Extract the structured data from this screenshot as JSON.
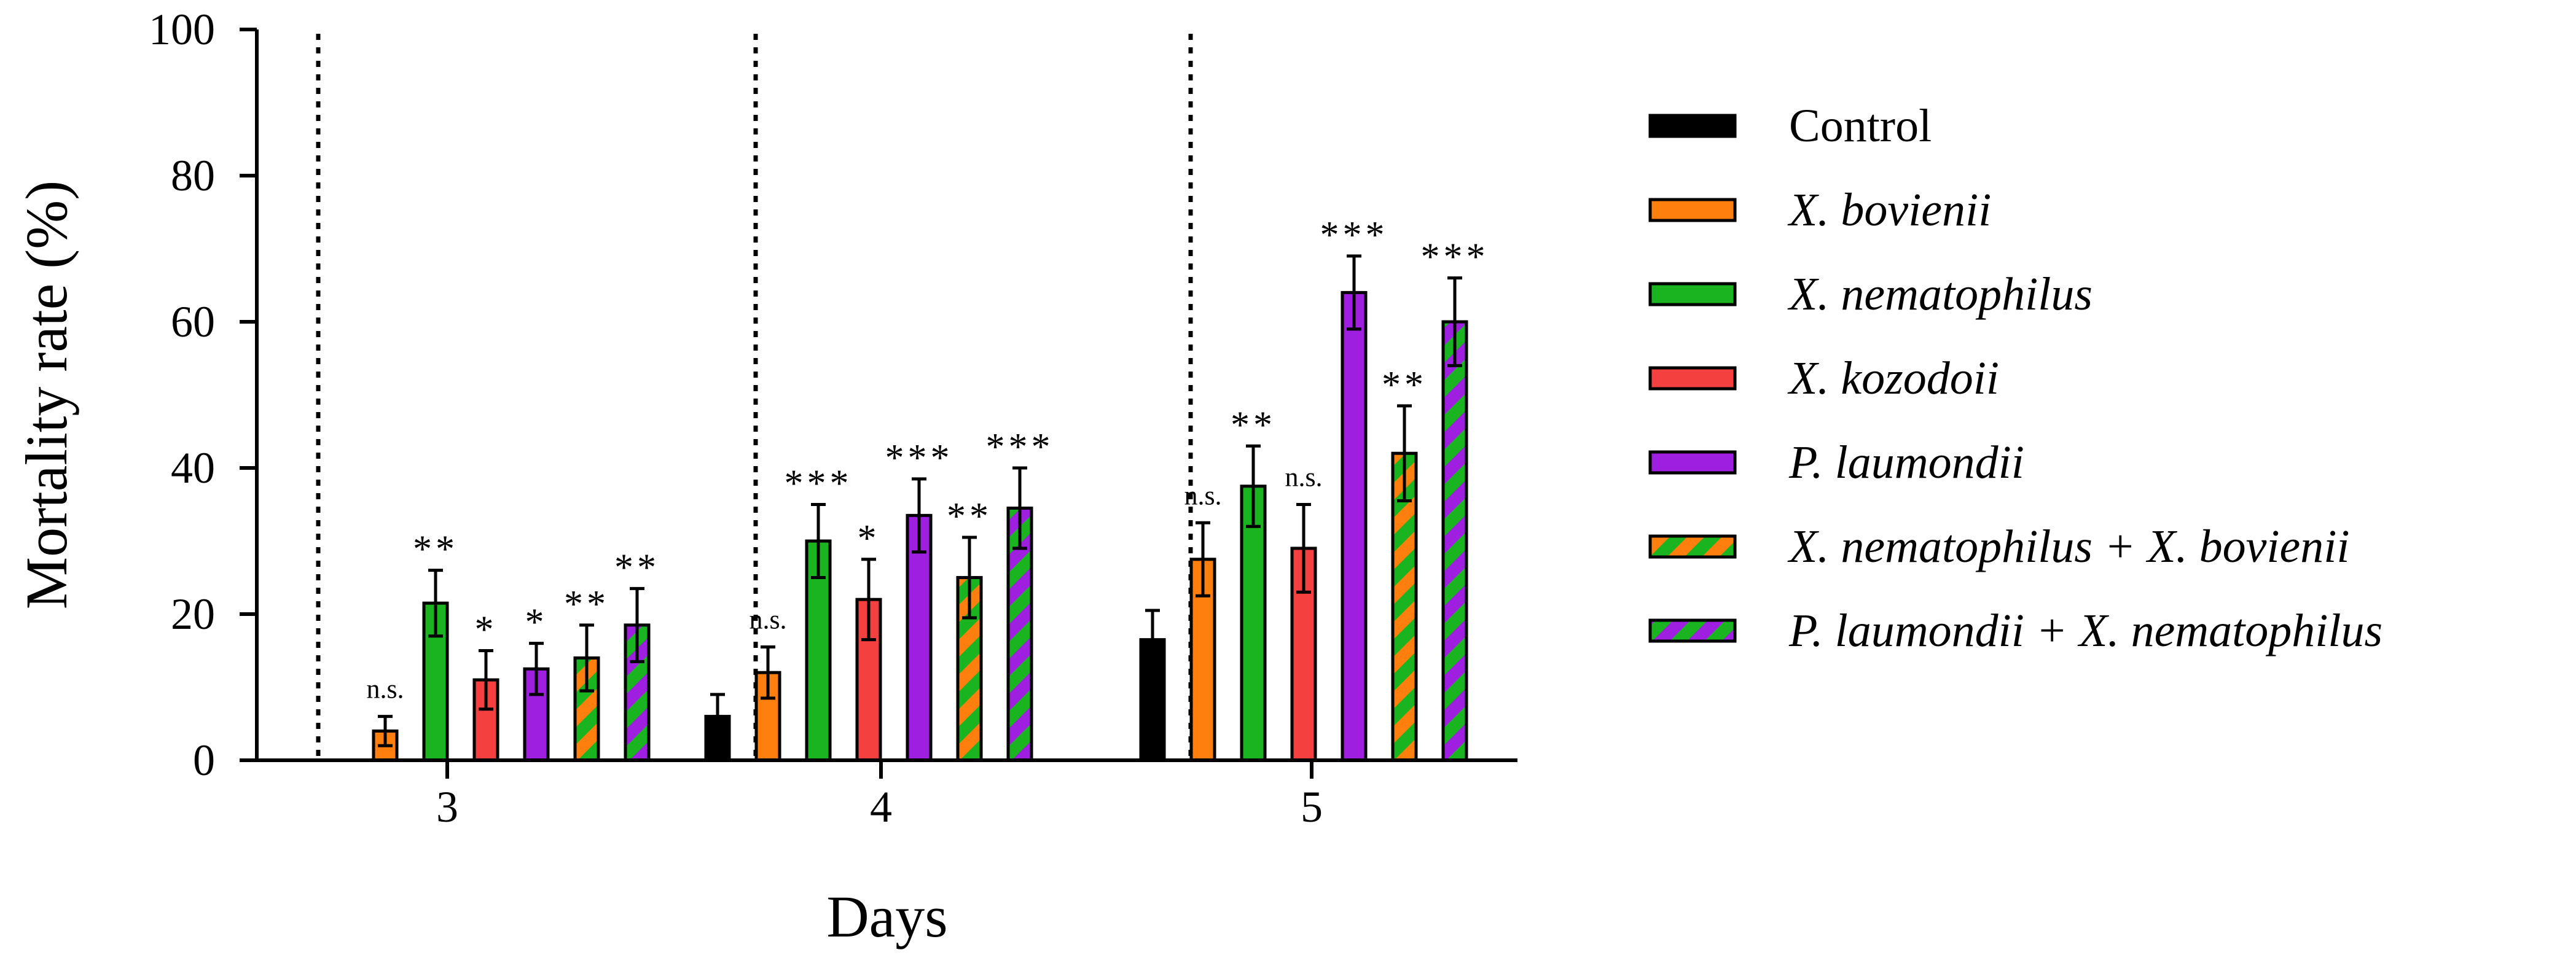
{
  "chart_data": {
    "type": "bar",
    "title": "",
    "xlabel": "Days",
    "ylabel": "Mortality rate (%)",
    "ylim": [
      0,
      100
    ],
    "yticks": [
      "0",
      "20",
      "40",
      "60",
      "80",
      "100"
    ],
    "categories": [
      "3",
      "4",
      "5"
    ],
    "legend_position": "right",
    "series": [
      {
        "name": "Control",
        "color": "#000000",
        "pattern": "solid",
        "italic": false,
        "values": [
          null,
          6,
          16.5
        ],
        "errors": [
          null,
          3,
          4
        ],
        "sig": [
          null,
          "",
          ""
        ]
      },
      {
        "name": "X. bovienii",
        "color": "#FF7F0E",
        "pattern": "solid",
        "italic": true,
        "values": [
          4,
          12,
          27.5
        ],
        "errors": [
          2,
          3.5,
          5
        ],
        "sig": [
          "n.s.",
          "n.s.",
          "n.s."
        ]
      },
      {
        "name": "X. nematophilus",
        "color": "#19B41F",
        "pattern": "solid",
        "italic": true,
        "values": [
          21.5,
          30,
          37.5
        ],
        "errors": [
          4.5,
          5,
          5.5
        ],
        "sig": [
          "**",
          "***",
          "**"
        ]
      },
      {
        "name": "X. kozodoii",
        "color": "#F54040",
        "pattern": "solid",
        "italic": true,
        "values": [
          11,
          22,
          29
        ],
        "errors": [
          4,
          5.5,
          6
        ],
        "sig": [
          "*",
          "*",
          "n.s."
        ]
      },
      {
        "name": "P. laumondii",
        "color": "#9E1FE0",
        "pattern": "solid",
        "italic": true,
        "values": [
          12.5,
          33.5,
          64
        ],
        "errors": [
          3.5,
          5,
          5
        ],
        "sig": [
          "*",
          "***",
          "***"
        ]
      },
      {
        "name": "X. nematophilus + X. bovienii",
        "color": "#FF7F0E",
        "color2": "#19B41F",
        "pattern": "stripes",
        "italic": true,
        "values": [
          14,
          25,
          42
        ],
        "errors": [
          4.5,
          5.5,
          6.5
        ],
        "sig": [
          "**",
          "**",
          "**"
        ]
      },
      {
        "name": "P. laumondii + X. nematophilus",
        "color": "#9E1FE0",
        "color2": "#19B41F",
        "pattern": "stripes",
        "italic": true,
        "values": [
          18.5,
          34.5,
          60
        ],
        "errors": [
          5,
          5.5,
          6
        ],
        "sig": [
          "**",
          "***",
          "***"
        ]
      }
    ]
  }
}
